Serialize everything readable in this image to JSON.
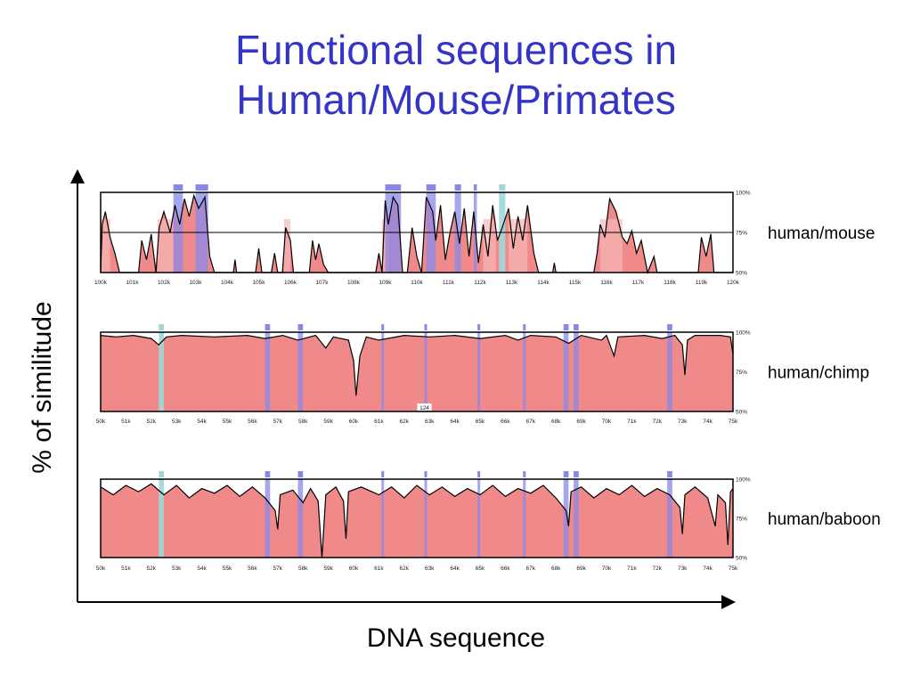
{
  "title_line1": "Functional sequences in",
  "title_line2": "Human/Mouse/Primates",
  "axes": {
    "ylabel": "% of similitude",
    "xlabel": "DNA sequence"
  },
  "colors": {
    "title": "#3434c8",
    "area": "#f08a8a",
    "highlight": "#8888e8",
    "utr": "#9fd8d8"
  },
  "chart_data": [
    {
      "type": "area",
      "label": "human/mouse",
      "pct_ticks": [
        "100%",
        "75%",
        "50%"
      ],
      "ylim": [
        50,
        100
      ],
      "x_ticks": [
        "100k",
        "101k",
        "102k",
        "103k",
        "104k",
        "105k",
        "106k",
        "107k",
        "108k",
        "109k",
        "110k",
        "111k",
        "112k",
        "113k",
        "114k",
        "115k",
        "116k",
        "117k",
        "118k",
        "119k",
        "120k"
      ],
      "xlim": [
        100,
        120
      ],
      "threshold": 75,
      "highlights_blue": [
        [
          102.3,
          102.6
        ],
        [
          103.0,
          103.4
        ],
        [
          109.0,
          109.5
        ],
        [
          110.3,
          110.6
        ],
        [
          111.2,
          111.4
        ],
        [
          111.8,
          111.9
        ]
      ],
      "highlights_cyan": [
        [
          112.6,
          112.8
        ]
      ],
      "highlights_pink": [
        [
          100.0,
          100.3
        ],
        [
          101.8,
          102.3
        ],
        [
          105.8,
          106.0
        ],
        [
          108.9,
          109.1
        ],
        [
          112.1,
          112.5
        ],
        [
          112.9,
          113.5
        ],
        [
          115.8,
          116.5
        ]
      ],
      "profile": [
        [
          100,
          50
        ],
        [
          100.05,
          80
        ],
        [
          100.15,
          88
        ],
        [
          100.3,
          72
        ],
        [
          100.45,
          62
        ],
        [
          100.6,
          50
        ],
        [
          101.2,
          50
        ],
        [
          101.3,
          70
        ],
        [
          101.45,
          58
        ],
        [
          101.6,
          74
        ],
        [
          101.75,
          50
        ],
        [
          101.85,
          78
        ],
        [
          102.0,
          88
        ],
        [
          102.2,
          75
        ],
        [
          102.35,
          92
        ],
        [
          102.5,
          80
        ],
        [
          102.65,
          96
        ],
        [
          102.8,
          85
        ],
        [
          102.95,
          98
        ],
        [
          103.1,
          90
        ],
        [
          103.3,
          97
        ],
        [
          103.45,
          60
        ],
        [
          103.6,
          50
        ],
        [
          104.2,
          50
        ],
        [
          104.25,
          58
        ],
        [
          104.3,
          50
        ],
        [
          104.9,
          50
        ],
        [
          105.0,
          65
        ],
        [
          105.1,
          50
        ],
        [
          105.4,
          50
        ],
        [
          105.5,
          62
        ],
        [
          105.6,
          50
        ],
        [
          105.75,
          50
        ],
        [
          105.85,
          78
        ],
        [
          106.0,
          70
        ],
        [
          106.1,
          50
        ],
        [
          106.6,
          50
        ],
        [
          106.7,
          70
        ],
        [
          106.8,
          58
        ],
        [
          106.9,
          68
        ],
        [
          107.05,
          55
        ],
        [
          107.2,
          50
        ],
        [
          108.7,
          50
        ],
        [
          108.8,
          62
        ],
        [
          108.9,
          50
        ],
        [
          109.0,
          95
        ],
        [
          109.1,
          80
        ],
        [
          109.25,
          97
        ],
        [
          109.4,
          92
        ],
        [
          109.55,
          50
        ],
        [
          109.7,
          50
        ],
        [
          109.85,
          78
        ],
        [
          110.0,
          60
        ],
        [
          110.15,
          50
        ],
        [
          110.3,
          97
        ],
        [
          110.5,
          88
        ],
        [
          110.6,
          70
        ],
        [
          110.75,
          92
        ],
        [
          110.9,
          58
        ],
        [
          111.05,
          75
        ],
        [
          111.2,
          88
        ],
        [
          111.35,
          68
        ],
        [
          111.5,
          90
        ],
        [
          111.65,
          60
        ],
        [
          111.8,
          88
        ],
        [
          111.95,
          56
        ],
        [
          112.1,
          80
        ],
        [
          112.25,
          60
        ],
        [
          112.4,
          92
        ],
        [
          112.55,
          70
        ],
        [
          112.7,
          78
        ],
        [
          112.9,
          90
        ],
        [
          113.05,
          65
        ],
        [
          113.2,
          85
        ],
        [
          113.35,
          70
        ],
        [
          113.5,
          92
        ],
        [
          113.7,
          62
        ],
        [
          113.85,
          50
        ],
        [
          114.3,
          50
        ],
        [
          114.35,
          56
        ],
        [
          114.4,
          50
        ],
        [
          115.6,
          50
        ],
        [
          115.7,
          62
        ],
        [
          115.8,
          80
        ],
        [
          115.95,
          72
        ],
        [
          116.1,
          96
        ],
        [
          116.3,
          88
        ],
        [
          116.5,
          72
        ],
        [
          116.65,
          68
        ],
        [
          116.8,
          76
        ],
        [
          116.95,
          62
        ],
        [
          117.1,
          70
        ],
        [
          117.3,
          50
        ],
        [
          117.5,
          60
        ],
        [
          117.6,
          50
        ],
        [
          118.9,
          50
        ],
        [
          119.0,
          72
        ],
        [
          119.15,
          60
        ],
        [
          119.3,
          74
        ],
        [
          119.4,
          50
        ],
        [
          120,
          50
        ]
      ]
    },
    {
      "type": "area",
      "label": "human/chimp",
      "pct_ticks": [
        "100%",
        "75%",
        "50%"
      ],
      "ylim": [
        50,
        100
      ],
      "x_ticks": [
        "50k",
        "51k",
        "52k",
        "53k",
        "54k",
        "55k",
        "56k",
        "57k",
        "58k",
        "59k",
        "60k",
        "61k",
        "62k",
        "63k",
        "64k",
        "65k",
        "66k",
        "67k",
        "68k",
        "69k",
        "70k",
        "71k",
        "72k",
        "73k",
        "74k",
        "75k"
      ],
      "xlim": [
        50,
        75
      ],
      "annotation": "124",
      "highlights_blue": [
        [
          56.5,
          56.7
        ],
        [
          57.8,
          58.0
        ],
        [
          61.1,
          61.2
        ],
        [
          62.8,
          62.9
        ],
        [
          64.9,
          65.0
        ],
        [
          66.7,
          66.8
        ],
        [
          68.3,
          68.5
        ],
        [
          68.7,
          68.9
        ],
        [
          72.4,
          72.6
        ]
      ],
      "highlights_cyan": [
        [
          52.3,
          52.5
        ]
      ],
      "profile": [
        [
          50,
          98
        ],
        [
          50.6,
          97
        ],
        [
          51.3,
          98
        ],
        [
          52.0,
          96
        ],
        [
          52.3,
          92
        ],
        [
          52.6,
          97
        ],
        [
          53.2,
          98
        ],
        [
          54.5,
          97
        ],
        [
          55.8,
          98
        ],
        [
          56.5,
          96
        ],
        [
          57.2,
          98
        ],
        [
          57.8,
          95
        ],
        [
          58.5,
          98
        ],
        [
          58.9,
          90
        ],
        [
          59.2,
          97
        ],
        [
          59.8,
          95
        ],
        [
          60.0,
          82
        ],
        [
          60.1,
          60
        ],
        [
          60.25,
          85
        ],
        [
          60.5,
          97
        ],
        [
          61.0,
          95
        ],
        [
          62.0,
          98
        ],
        [
          63.0,
          97
        ],
        [
          64.0,
          98
        ],
        [
          65.0,
          96
        ],
        [
          66.0,
          98
        ],
        [
          66.5,
          95
        ],
        [
          67.0,
          98
        ],
        [
          68.0,
          97
        ],
        [
          68.5,
          93
        ],
        [
          69.0,
          98
        ],
        [
          69.8,
          95
        ],
        [
          70.0,
          98
        ],
        [
          70.3,
          85
        ],
        [
          70.45,
          97
        ],
        [
          71.5,
          98
        ],
        [
          72.2,
          96
        ],
        [
          72.7,
          98
        ],
        [
          73.0,
          92
        ],
        [
          73.1,
          73
        ],
        [
          73.2,
          95
        ],
        [
          73.5,
          98
        ],
        [
          74.5,
          98
        ],
        [
          74.9,
          97
        ],
        [
          75,
          86
        ]
      ]
    },
    {
      "type": "area",
      "label": "human/baboon",
      "pct_ticks": [
        "100%",
        "75%",
        "50%"
      ],
      "ylim": [
        50,
        100
      ],
      "x_ticks": [
        "50k",
        "51k",
        "52k",
        "53k",
        "54k",
        "55k",
        "56k",
        "57k",
        "58k",
        "59k",
        "60k",
        "61k",
        "62k",
        "63k",
        "64k",
        "65k",
        "66k",
        "67k",
        "68k",
        "69k",
        "70k",
        "71k",
        "72k",
        "73k",
        "74k",
        "75k"
      ],
      "xlim": [
        50,
        75
      ],
      "highlights_blue": [
        [
          56.5,
          56.7
        ],
        [
          57.8,
          58.0
        ],
        [
          61.1,
          61.2
        ],
        [
          62.8,
          62.9
        ],
        [
          64.9,
          65.0
        ],
        [
          66.7,
          66.8
        ],
        [
          68.3,
          68.5
        ],
        [
          68.7,
          68.9
        ],
        [
          72.4,
          72.6
        ]
      ],
      "highlights_cyan": [
        [
          52.3,
          52.5
        ]
      ],
      "profile": [
        [
          50,
          95
        ],
        [
          50.5,
          90
        ],
        [
          51.0,
          96
        ],
        [
          51.5,
          92
        ],
        [
          52.0,
          97
        ],
        [
          52.5,
          90
        ],
        [
          53.0,
          96
        ],
        [
          53.5,
          88
        ],
        [
          54.0,
          94
        ],
        [
          54.5,
          91
        ],
        [
          55.0,
          96
        ],
        [
          55.5,
          89
        ],
        [
          56.0,
          95
        ],
        [
          56.5,
          88
        ],
        [
          56.9,
          80
        ],
        [
          57.0,
          68
        ],
        [
          57.1,
          90
        ],
        [
          57.6,
          93
        ],
        [
          58.0,
          85
        ],
        [
          58.3,
          94
        ],
        [
          58.6,
          86
        ],
        [
          58.75,
          50
        ],
        [
          58.9,
          90
        ],
        [
          59.3,
          95
        ],
        [
          59.6,
          86
        ],
        [
          59.7,
          62
        ],
        [
          59.8,
          92
        ],
        [
          60.3,
          95
        ],
        [
          61.0,
          90
        ],
        [
          61.5,
          95
        ],
        [
          62.0,
          88
        ],
        [
          62.5,
          96
        ],
        [
          63.0,
          90
        ],
        [
          63.5,
          95
        ],
        [
          64.0,
          89
        ],
        [
          64.5,
          94
        ],
        [
          65.0,
          90
        ],
        [
          65.5,
          96
        ],
        [
          66.0,
          89
        ],
        [
          66.5,
          94
        ],
        [
          67.0,
          91
        ],
        [
          67.5,
          96
        ],
        [
          68.0,
          88
        ],
        [
          68.4,
          80
        ],
        [
          68.5,
          70
        ],
        [
          68.6,
          92
        ],
        [
          69.0,
          95
        ],
        [
          69.5,
          88
        ],
        [
          70.0,
          94
        ],
        [
          70.5,
          90
        ],
        [
          71.0,
          96
        ],
        [
          71.5,
          89
        ],
        [
          72.0,
          94
        ],
        [
          72.5,
          90
        ],
        [
          72.9,
          82
        ],
        [
          73.0,
          65
        ],
        [
          73.1,
          90
        ],
        [
          73.5,
          95
        ],
        [
          74.0,
          88
        ],
        [
          74.3,
          70
        ],
        [
          74.4,
          90
        ],
        [
          74.7,
          85
        ],
        [
          74.8,
          58
        ],
        [
          74.9,
          92
        ],
        [
          75,
          94
        ]
      ]
    }
  ]
}
